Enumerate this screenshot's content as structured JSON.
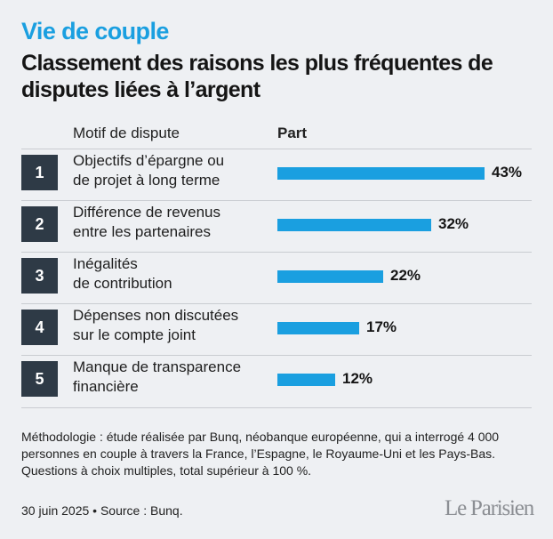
{
  "kicker": "Vie de couple",
  "title": "Classement des raisons les plus fréquentes de disputes liées à l’argent",
  "columns": {
    "motif": "Motif de dispute",
    "part": "Part"
  },
  "chart_data": {
    "type": "bar",
    "orientation": "horizontal",
    "categories": [
      "Objectifs d’épargne ou de projet à long terme",
      "Différence de revenus entre les partenaires",
      "Inégalités de contribution",
      "Dépenses non discutées sur le compte joint",
      "Manque de transparence financière"
    ],
    "ranks": [
      "1",
      "2",
      "3",
      "4",
      "5"
    ],
    "values": [
      43,
      32,
      22,
      17,
      12
    ],
    "value_labels": [
      "43%",
      "32%",
      "22%",
      "17%",
      "12%"
    ],
    "bar_color": "#1a9fe0"
  },
  "rows": [
    {
      "rank": "1",
      "line1": "Objectifs d’épargne ou",
      "line2": "de projet à long terme",
      "label": "43%"
    },
    {
      "rank": "2",
      "line1": "Différence de revenus",
      "line2": "entre les partenaires",
      "label": "32%"
    },
    {
      "rank": "3",
      "line1": "Inégalités",
      "line2": "de contribution",
      "label": "22%"
    },
    {
      "rank": "4",
      "line1": "Dépenses non discutées",
      "line2": "sur le compte joint",
      "label": "17%"
    },
    {
      "rank": "5",
      "line1": "Manque de transparence",
      "line2": "financière",
      "label": "12%"
    }
  ],
  "methodology": "Méthodologie : étude réalisée par Bunq, néobanque européenne, qui a interrogé 4 000 personnes en couple à travers la France, l’Espagne, le Royaume-Uni et les Pays-Bas. Questions à choix multiples, total supérieur à 100 %.",
  "footer": "30 juin 2025 • Source : Bunq.",
  "logo": "Le Parisien",
  "colors": {
    "accent": "#1a9fe0",
    "rank_box": "#2e3a46",
    "background": "#eef0f3"
  }
}
